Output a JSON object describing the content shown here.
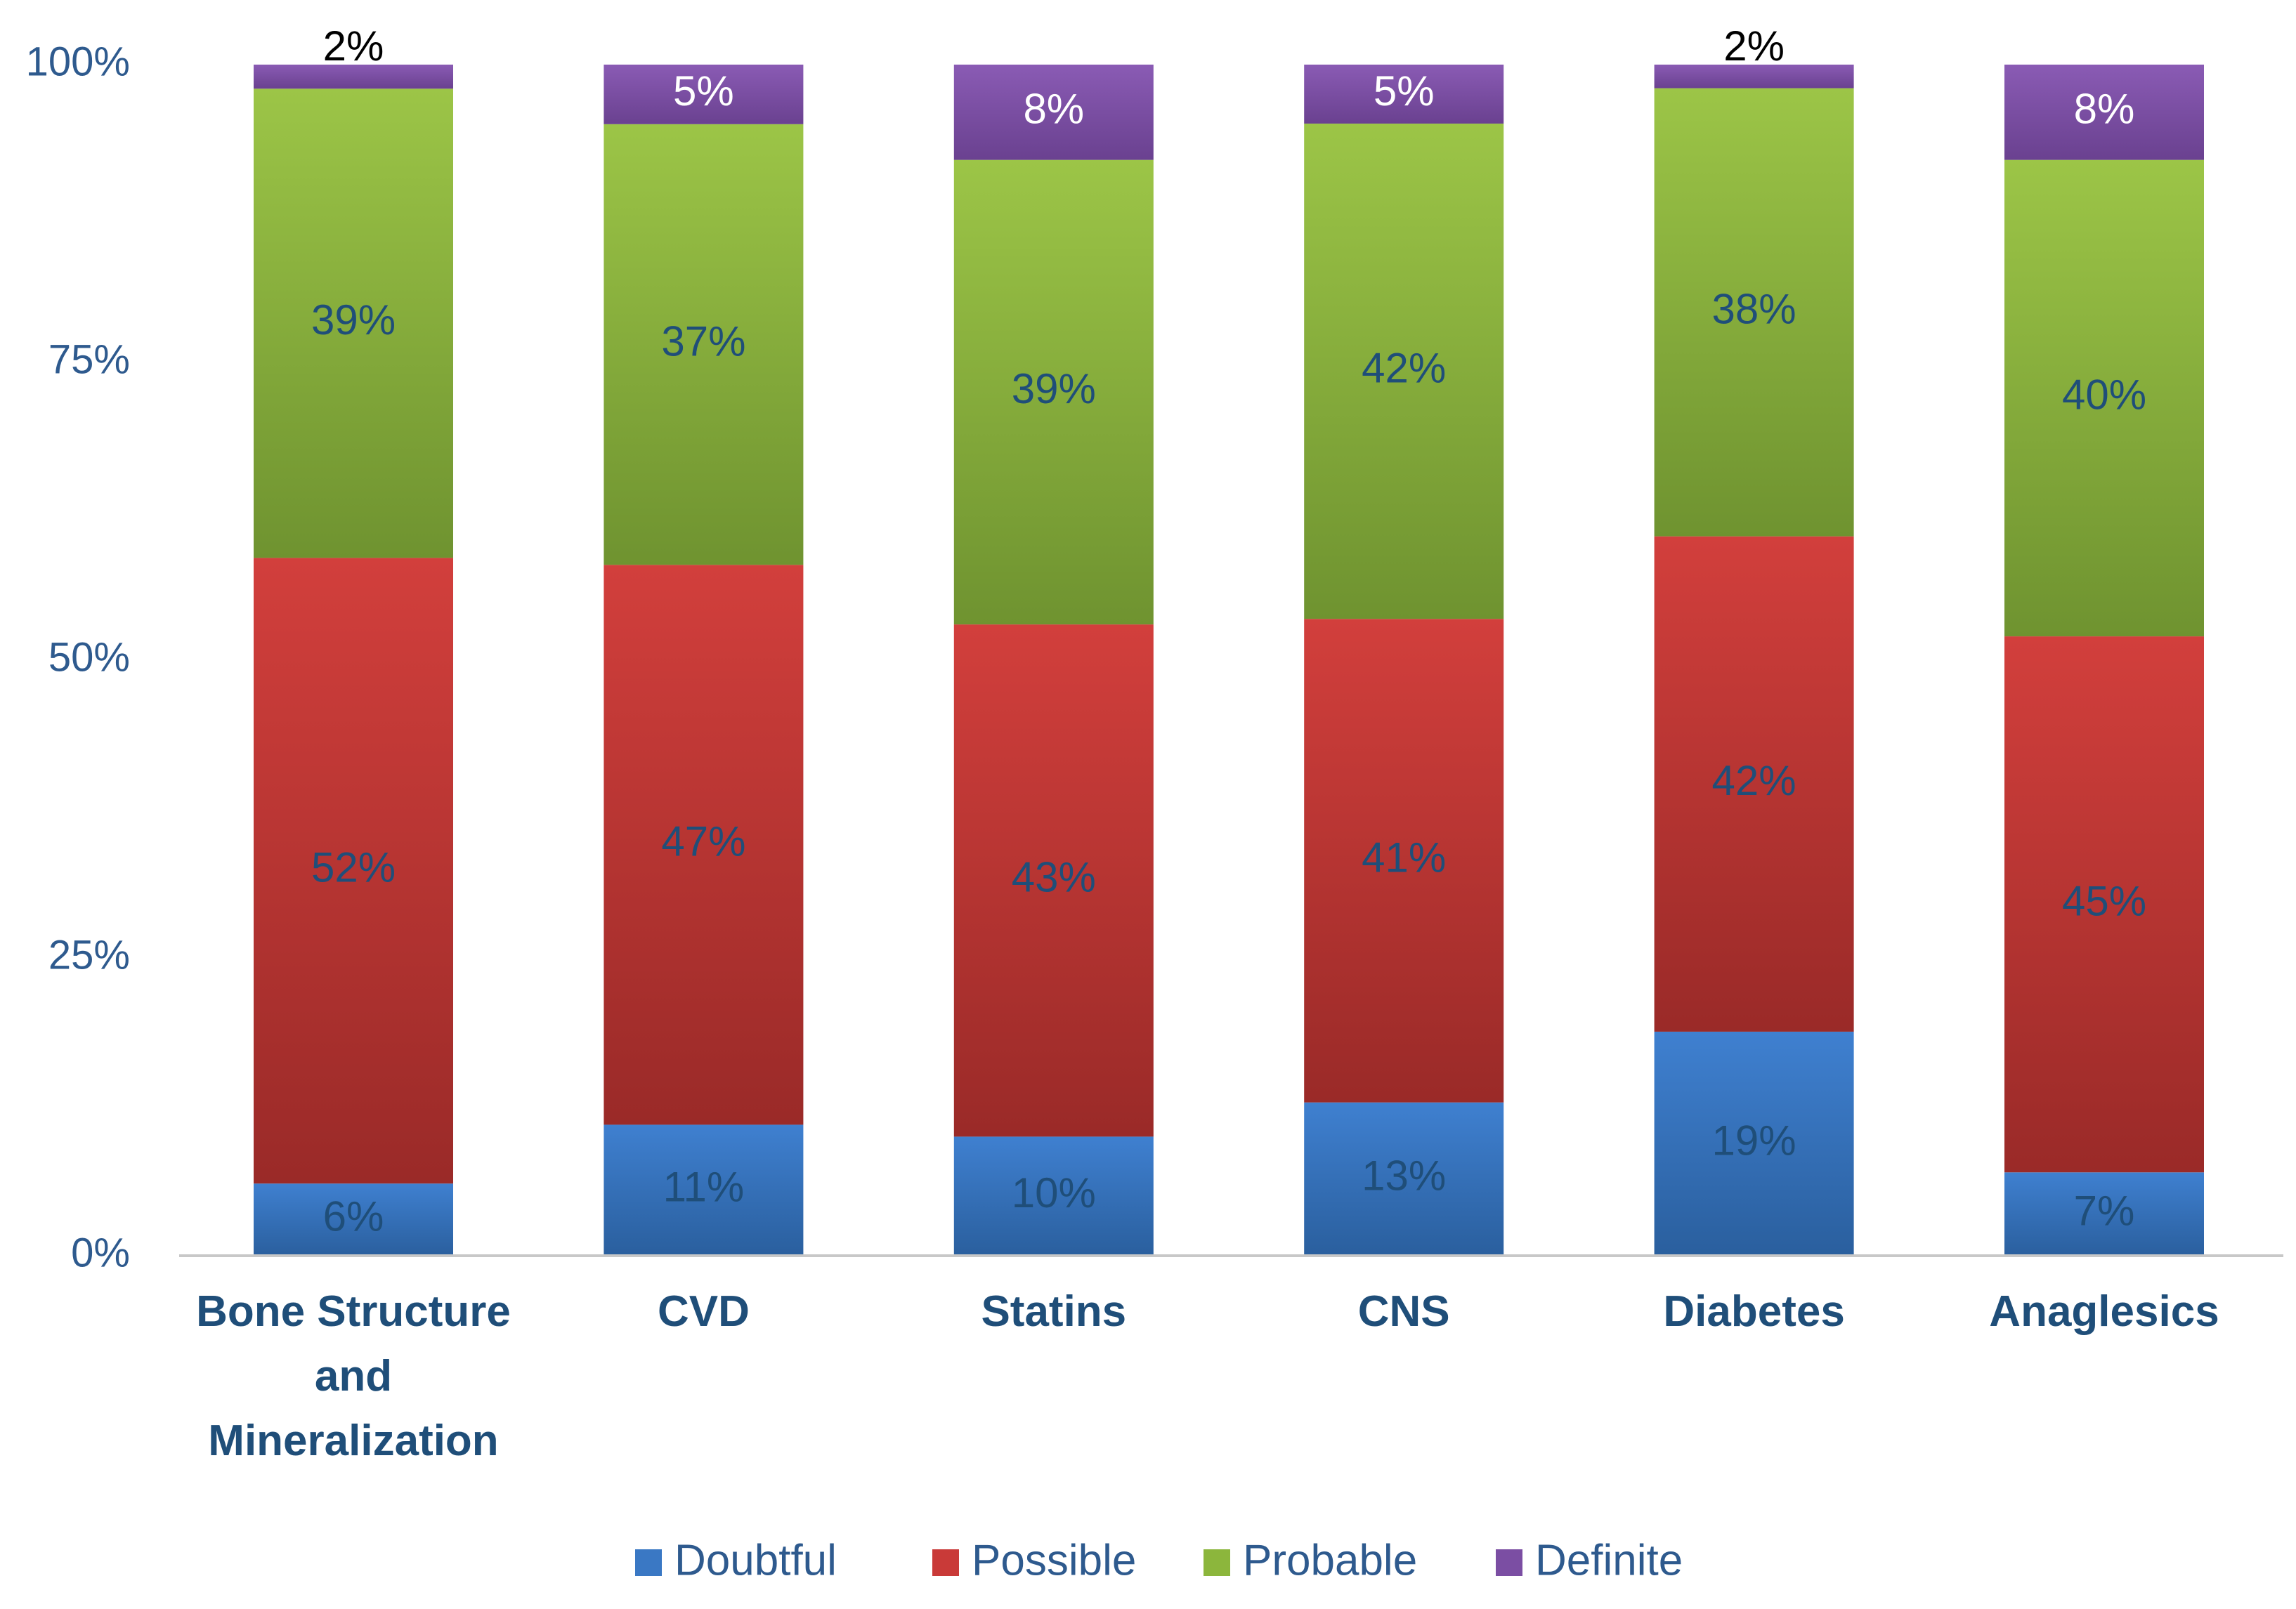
{
  "chart_data": {
    "type": "bar",
    "stacked": true,
    "percent": true,
    "title": "",
    "xlabel": "",
    "ylabel": "",
    "ylim": [
      0,
      100
    ],
    "yticks": [
      "0%",
      "25%",
      "50%",
      "75%",
      "100%"
    ],
    "ytick_values": [
      0,
      25,
      50,
      75,
      100
    ],
    "categories": [
      [
        "Bone Structure",
        "and",
        "Mineralization"
      ],
      [
        "CVD"
      ],
      [
        "Statins"
      ],
      [
        "CNS"
      ],
      [
        "Diabetes"
      ],
      [
        "Anaglesics"
      ]
    ],
    "series": [
      {
        "name": "Doubtful",
        "color": "#3a78c4",
        "values": [
          6,
          11,
          10,
          13,
          19,
          7
        ],
        "labels": [
          "6%",
          "11%",
          "10%",
          "13%",
          "19%",
          "7%"
        ]
      },
      {
        "name": "Possible",
        "color": "#c93a38",
        "values": [
          52,
          47,
          43,
          41,
          42,
          45
        ],
        "labels": [
          "52%",
          "47%",
          "43%",
          "41%",
          "42%",
          "45%"
        ]
      },
      {
        "name": "Probable",
        "color": "#8cb63c",
        "values": [
          39,
          37,
          39,
          42,
          38,
          40
        ],
        "labels": [
          "39%",
          "37%",
          "39%",
          "42%",
          "38%",
          "40%"
        ]
      },
      {
        "name": "Definite",
        "color": "#7b4ea3",
        "values": [
          2,
          5,
          8,
          5,
          2,
          8
        ],
        "labels": [
          "2%",
          "5%",
          "8%",
          "5%",
          "2%",
          "8%"
        ]
      }
    ],
    "legend": [
      "Doubtful",
      "Possible",
      "Probable",
      "Definite"
    ],
    "legend_position": "bottom",
    "grid": false
  }
}
